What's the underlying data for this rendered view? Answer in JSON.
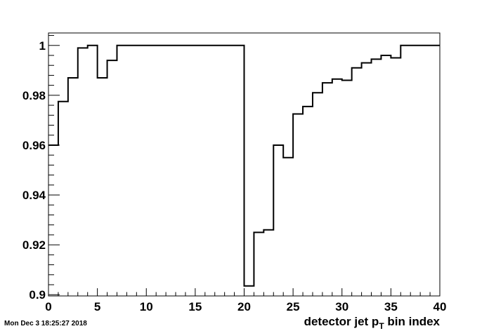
{
  "timestamp": "Mon Dec  3 18:25:27 2018",
  "chart_data": {
    "type": "step",
    "title": "",
    "xlabel_parts": {
      "main": "detector jet p",
      "sub": "T",
      "rest": " bin index"
    },
    "ylabel": "",
    "xlim": [
      0,
      40
    ],
    "ylim": [
      0.8995,
      1.005
    ],
    "x_ticks": [
      0,
      5,
      10,
      15,
      20,
      25,
      30,
      35,
      40
    ],
    "y_ticks": [
      0.9,
      0.92,
      0.94,
      0.96,
      0.98,
      1
    ],
    "y_tick_labels": [
      "0.9",
      "0.92",
      "0.94",
      "0.96",
      "0.98",
      "1"
    ],
    "bin_edges": [
      0,
      1,
      2,
      3,
      4,
      5,
      6,
      7,
      8,
      9,
      10,
      11,
      12,
      13,
      14,
      15,
      16,
      17,
      18,
      19,
      20,
      21,
      22,
      23,
      24,
      25,
      26,
      27,
      28,
      29,
      30,
      31,
      32,
      33,
      34,
      35,
      36,
      37,
      38,
      39,
      40
    ],
    "values": [
      0.96,
      0.9775,
      0.987,
      0.999,
      1.0,
      0.987,
      0.994,
      1.0,
      1.0,
      1.0,
      1.0,
      1.0,
      1.0,
      1.0,
      1.0,
      1.0,
      1.0,
      1.0,
      1.0,
      1.0,
      0.9035,
      0.925,
      0.926,
      0.96,
      0.955,
      0.9725,
      0.9755,
      0.981,
      0.985,
      0.9865,
      0.986,
      0.991,
      0.993,
      0.9945,
      0.996,
      0.995,
      1.0,
      1.0,
      1.0,
      1.0
    ],
    "grid": false,
    "legend": "none"
  }
}
